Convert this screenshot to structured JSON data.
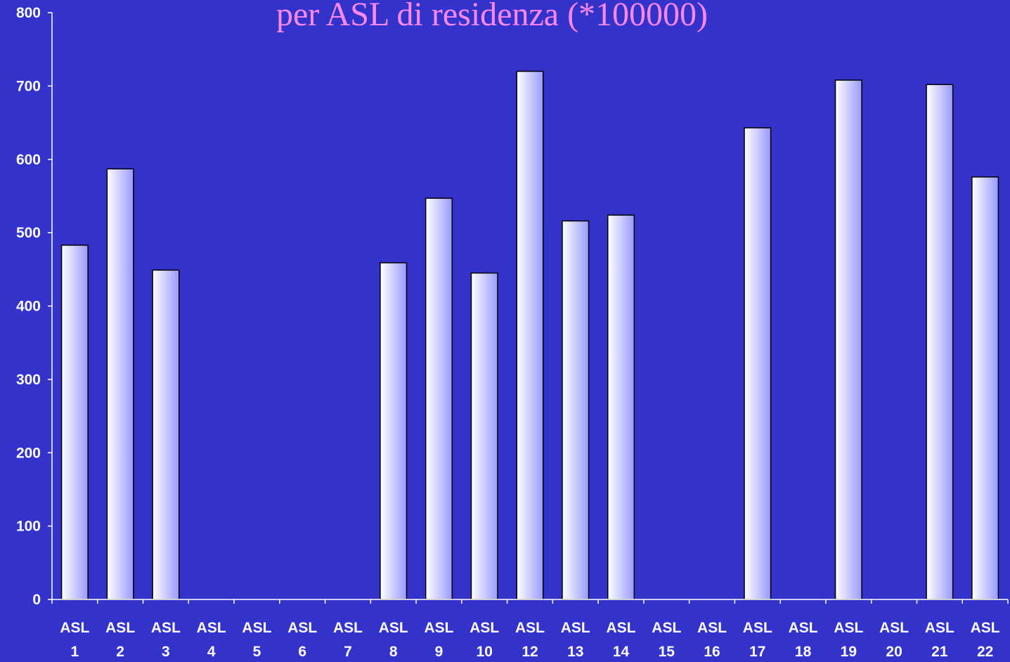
{
  "colors": {
    "background": "#3333cc",
    "title": "#ff88ee",
    "axis": "#ffffff",
    "bar_gradient_left": "#ffffff",
    "bar_gradient_right": "#9999ff",
    "bar_outline": "#000000"
  },
  "chart_data": {
    "type": "bar",
    "title": "per ASL di residenza (*100000)",
    "xlabel": "",
    "ylabel": "",
    "ylim": [
      0,
      800
    ],
    "yticks": [
      0,
      100,
      200,
      300,
      400,
      500,
      600,
      700,
      800
    ],
    "grid": false,
    "legend": "none",
    "categories": [
      [
        "ASL",
        "1"
      ],
      [
        "ASL",
        "2"
      ],
      [
        "ASL",
        "3"
      ],
      [
        "ASL",
        "4"
      ],
      [
        "ASL",
        "5"
      ],
      [
        "ASL",
        "6"
      ],
      [
        "ASL",
        "7"
      ],
      [
        "ASL",
        "8"
      ],
      [
        "ASL",
        "9"
      ],
      [
        "ASL",
        "10"
      ],
      [
        "ASL",
        "12"
      ],
      [
        "ASL",
        "13"
      ],
      [
        "ASL",
        "14"
      ],
      [
        "ASL",
        "15"
      ],
      [
        "ASL",
        "16"
      ],
      [
        "ASL",
        "17"
      ],
      [
        "ASL",
        "18"
      ],
      [
        "ASL",
        "19"
      ],
      [
        "ASL",
        "20"
      ],
      [
        "ASL",
        "21"
      ],
      [
        "ASL",
        "22"
      ]
    ],
    "values": [
      483,
      587,
      449,
      null,
      null,
      null,
      null,
      459,
      547,
      445,
      720,
      516,
      524,
      null,
      null,
      643,
      null,
      708,
      null,
      702,
      576
    ]
  }
}
